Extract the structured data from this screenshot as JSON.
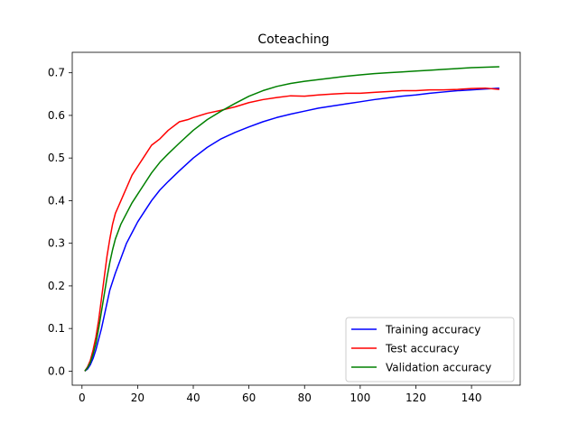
{
  "chart_data": {
    "type": "line",
    "title": "Coteaching",
    "xlabel": "",
    "ylabel": "",
    "xlim": [
      -3.5,
      157.5
    ],
    "ylim": [
      -0.033,
      0.748
    ],
    "xticks": [
      0,
      20,
      40,
      60,
      80,
      100,
      120,
      140
    ],
    "yticks": [
      0.0,
      0.1,
      0.2,
      0.3,
      0.4,
      0.5,
      0.6,
      0.7
    ],
    "grid": false,
    "legend_position": "lower-right",
    "series": [
      {
        "name": "Training accuracy",
        "color": "#0000ff",
        "x": [
          1,
          2,
          3,
          4,
          5,
          6,
          7,
          8,
          9,
          10,
          12,
          14,
          16,
          18,
          20,
          22,
          25,
          28,
          31,
          35,
          40,
          45,
          50,
          55,
          60,
          65,
          70,
          75,
          80,
          85,
          90,
          95,
          100,
          105,
          110,
          115,
          120,
          125,
          130,
          135,
          140,
          145,
          150
        ],
        "y": [
          0.0,
          0.005,
          0.015,
          0.03,
          0.05,
          0.075,
          0.1,
          0.13,
          0.16,
          0.19,
          0.23,
          0.265,
          0.3,
          0.325,
          0.35,
          0.37,
          0.4,
          0.425,
          0.445,
          0.47,
          0.5,
          0.525,
          0.545,
          0.56,
          0.573,
          0.585,
          0.595,
          0.603,
          0.61,
          0.617,
          0.622,
          0.627,
          0.632,
          0.637,
          0.641,
          0.645,
          0.648,
          0.652,
          0.655,
          0.658,
          0.66,
          0.662,
          0.664
        ]
      },
      {
        "name": "Test accuracy",
        "color": "#ff0000",
        "x": [
          1,
          2,
          3,
          4,
          5,
          6,
          7,
          8,
          9,
          10,
          11,
          12,
          13,
          14,
          15,
          16,
          18,
          20,
          22,
          25,
          28,
          31,
          35,
          38,
          40,
          45,
          50,
          55,
          60,
          65,
          70,
          75,
          80,
          85,
          90,
          95,
          100,
          105,
          110,
          115,
          120,
          125,
          130,
          135,
          140,
          145,
          150
        ],
        "y": [
          0.0,
          0.01,
          0.025,
          0.05,
          0.08,
          0.12,
          0.17,
          0.22,
          0.27,
          0.31,
          0.345,
          0.37,
          0.385,
          0.4,
          0.415,
          0.43,
          0.46,
          0.48,
          0.5,
          0.53,
          0.545,
          0.565,
          0.585,
          0.59,
          0.595,
          0.605,
          0.612,
          0.62,
          0.63,
          0.637,
          0.642,
          0.646,
          0.645,
          0.648,
          0.65,
          0.652,
          0.652,
          0.654,
          0.656,
          0.658,
          0.658,
          0.66,
          0.66,
          0.661,
          0.663,
          0.664,
          0.661
        ]
      },
      {
        "name": "Validation accuracy",
        "color": "#008000",
        "x": [
          1,
          2,
          3,
          4,
          5,
          6,
          7,
          8,
          9,
          10,
          11,
          12,
          14,
          16,
          18,
          20,
          22,
          25,
          28,
          31,
          35,
          40,
          45,
          50,
          55,
          60,
          65,
          70,
          75,
          80,
          85,
          90,
          95,
          100,
          105,
          110,
          115,
          120,
          125,
          130,
          135,
          140,
          145,
          150
        ],
        "y": [
          0.0,
          0.008,
          0.02,
          0.04,
          0.065,
          0.1,
          0.14,
          0.18,
          0.22,
          0.255,
          0.285,
          0.31,
          0.345,
          0.37,
          0.395,
          0.415,
          0.435,
          0.465,
          0.49,
          0.51,
          0.535,
          0.565,
          0.59,
          0.61,
          0.628,
          0.645,
          0.658,
          0.668,
          0.675,
          0.68,
          0.684,
          0.688,
          0.692,
          0.695,
          0.698,
          0.7,
          0.702,
          0.704,
          0.706,
          0.708,
          0.71,
          0.712,
          0.713,
          0.714
        ]
      }
    ]
  }
}
